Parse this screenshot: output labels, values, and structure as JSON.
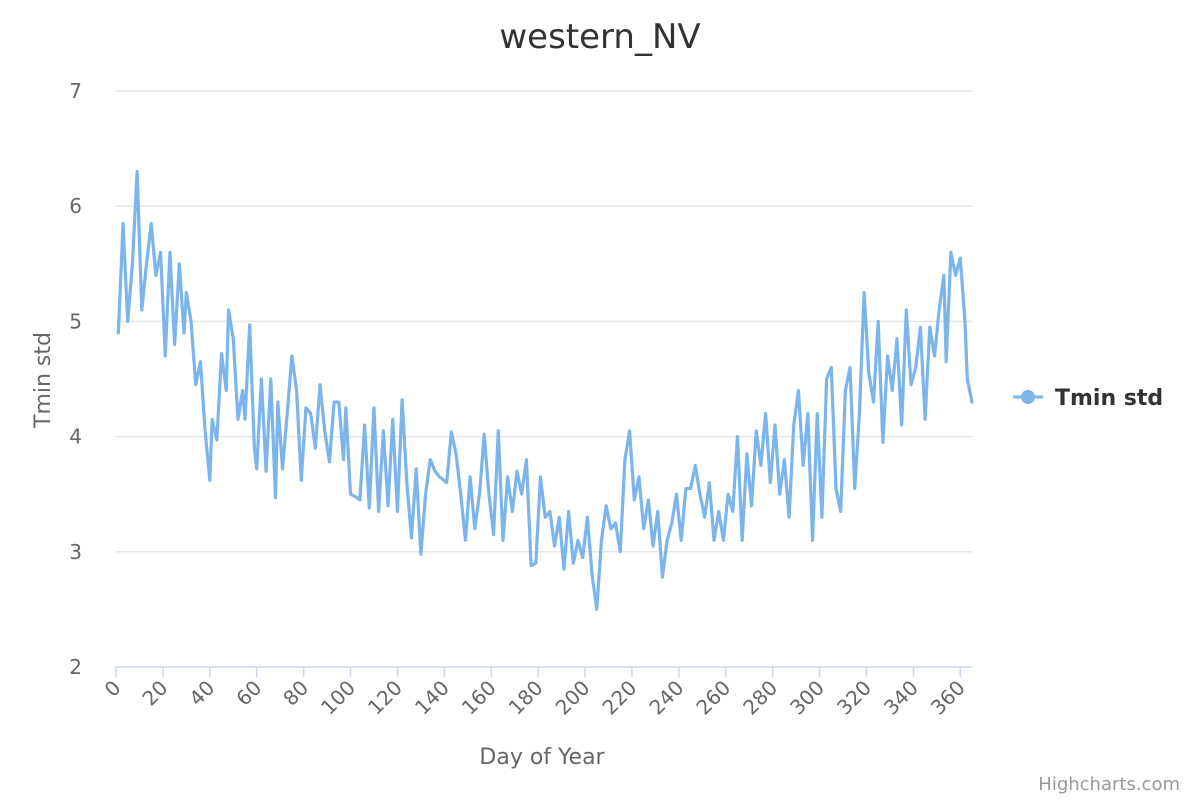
{
  "chart_data": {
    "type": "line",
    "title": "western_NV",
    "xlabel": "Day of Year",
    "ylabel": "Tmin std",
    "xlim": [
      0,
      365
    ],
    "ylim": [
      2,
      7
    ],
    "xticks": [
      "0",
      "20",
      "40",
      "60",
      "80",
      "100",
      "120",
      "140",
      "160",
      "180",
      "200",
      "220",
      "240",
      "260",
      "280",
      "300",
      "320",
      "340",
      "360"
    ],
    "yticks": [
      "2",
      "3",
      "4",
      "5",
      "6",
      "7"
    ],
    "grid": true,
    "legend_position": "right",
    "series": [
      {
        "name": "Tmin std",
        "color": "#7cb5ec",
        "points": [
          [
            1,
            4.9
          ],
          [
            3,
            5.85
          ],
          [
            5,
            5.0
          ],
          [
            7,
            5.5
          ],
          [
            9,
            6.3
          ],
          [
            11,
            5.1
          ],
          [
            13,
            5.5
          ],
          [
            15,
            5.85
          ],
          [
            17,
            5.4
          ],
          [
            19,
            5.6
          ],
          [
            21,
            4.7
          ],
          [
            23,
            5.6
          ],
          [
            25,
            4.8
          ],
          [
            27,
            5.5
          ],
          [
            29,
            4.9
          ],
          [
            30,
            5.25
          ],
          [
            32,
            5.0
          ],
          [
            34,
            4.45
          ],
          [
            36,
            4.65
          ],
          [
            38,
            4.05
          ],
          [
            40,
            3.62
          ],
          [
            41,
            4.15
          ],
          [
            43,
            3.97
          ],
          [
            45,
            4.72
          ],
          [
            47,
            4.4
          ],
          [
            48,
            5.1
          ],
          [
            50,
            4.85
          ],
          [
            52,
            4.15
          ],
          [
            54,
            4.4
          ],
          [
            55,
            4.15
          ],
          [
            57,
            4.97
          ],
          [
            59,
            3.9
          ],
          [
            60,
            3.72
          ],
          [
            62,
            4.5
          ],
          [
            64,
            3.7
          ],
          [
            66,
            4.5
          ],
          [
            68,
            3.47
          ],
          [
            69,
            4.3
          ],
          [
            71,
            3.72
          ],
          [
            73,
            4.2
          ],
          [
            75,
            4.7
          ],
          [
            77,
            4.4
          ],
          [
            79,
            3.62
          ],
          [
            81,
            4.25
          ],
          [
            83,
            4.2
          ],
          [
            85,
            3.9
          ],
          [
            87,
            4.45
          ],
          [
            89,
            4.05
          ],
          [
            91,
            3.78
          ],
          [
            93,
            4.3
          ],
          [
            95,
            4.3
          ],
          [
            97,
            3.8
          ],
          [
            98,
            4.25
          ],
          [
            100,
            3.5
          ],
          [
            102,
            3.48
          ],
          [
            104,
            3.45
          ],
          [
            106,
            4.1
          ],
          [
            108,
            3.38
          ],
          [
            110,
            4.25
          ],
          [
            112,
            3.35
          ],
          [
            114,
            4.05
          ],
          [
            116,
            3.4
          ],
          [
            118,
            4.15
          ],
          [
            120,
            3.35
          ],
          [
            122,
            4.32
          ],
          [
            124,
            3.6
          ],
          [
            126,
            3.12
          ],
          [
            128,
            3.72
          ],
          [
            130,
            2.98
          ],
          [
            132,
            3.5
          ],
          [
            134,
            3.8
          ],
          [
            136,
            3.7
          ],
          [
            138,
            3.65
          ],
          [
            141,
            3.6
          ],
          [
            143,
            4.04
          ],
          [
            145,
            3.85
          ],
          [
            147,
            3.5
          ],
          [
            149,
            3.1
          ],
          [
            151,
            3.65
          ],
          [
            153,
            3.2
          ],
          [
            155,
            3.5
          ],
          [
            157,
            4.02
          ],
          [
            159,
            3.5
          ],
          [
            161,
            3.15
          ],
          [
            163,
            4.05
          ],
          [
            165,
            3.1
          ],
          [
            167,
            3.65
          ],
          [
            169,
            3.35
          ],
          [
            171,
            3.7
          ],
          [
            173,
            3.5
          ],
          [
            175,
            3.8
          ],
          [
            177,
            2.88
          ],
          [
            179,
            2.9
          ],
          [
            181,
            3.65
          ],
          [
            183,
            3.3
          ],
          [
            185,
            3.35
          ],
          [
            187,
            3.05
          ],
          [
            189,
            3.3
          ],
          [
            191,
            2.85
          ],
          [
            193,
            3.35
          ],
          [
            195,
            2.9
          ],
          [
            197,
            3.1
          ],
          [
            199,
            2.95
          ],
          [
            201,
            3.3
          ],
          [
            203,
            2.8
          ],
          [
            205,
            2.5
          ],
          [
            207,
            3.1
          ],
          [
            209,
            3.4
          ],
          [
            211,
            3.2
          ],
          [
            213,
            3.25
          ],
          [
            215,
            3.0
          ],
          [
            217,
            3.8
          ],
          [
            219,
            4.05
          ],
          [
            221,
            3.45
          ],
          [
            223,
            3.65
          ],
          [
            225,
            3.2
          ],
          [
            227,
            3.45
          ],
          [
            229,
            3.05
          ],
          [
            231,
            3.35
          ],
          [
            233,
            2.78
          ],
          [
            235,
            3.1
          ],
          [
            237,
            3.25
          ],
          [
            239,
            3.5
          ],
          [
            241,
            3.1
          ],
          [
            243,
            3.55
          ],
          [
            245,
            3.55
          ],
          [
            247,
            3.75
          ],
          [
            249,
            3.5
          ],
          [
            251,
            3.3
          ],
          [
            253,
            3.6
          ],
          [
            255,
            3.1
          ],
          [
            257,
            3.35
          ],
          [
            259,
            3.1
          ],
          [
            261,
            3.5
          ],
          [
            263,
            3.35
          ],
          [
            265,
            4.0
          ],
          [
            267,
            3.1
          ],
          [
            269,
            3.85
          ],
          [
            271,
            3.4
          ],
          [
            273,
            4.05
          ],
          [
            275,
            3.75
          ],
          [
            277,
            4.2
          ],
          [
            279,
            3.6
          ],
          [
            281,
            4.1
          ],
          [
            283,
            3.5
          ],
          [
            285,
            3.8
          ],
          [
            287,
            3.3
          ],
          [
            289,
            4.1
          ],
          [
            291,
            4.4
          ],
          [
            293,
            3.75
          ],
          [
            295,
            4.2
          ],
          [
            297,
            3.1
          ],
          [
            299,
            4.2
          ],
          [
            301,
            3.3
          ],
          [
            303,
            4.5
          ],
          [
            305,
            4.6
          ],
          [
            307,
            3.55
          ],
          [
            309,
            3.35
          ],
          [
            311,
            4.4
          ],
          [
            313,
            4.6
          ],
          [
            315,
            3.55
          ],
          [
            317,
            4.2
          ],
          [
            319,
            5.25
          ],
          [
            321,
            4.55
          ],
          [
            323,
            4.3
          ],
          [
            325,
            5.0
          ],
          [
            327,
            3.95
          ],
          [
            329,
            4.7
          ],
          [
            331,
            4.4
          ],
          [
            333,
            4.85
          ],
          [
            335,
            4.1
          ],
          [
            337,
            5.1
          ],
          [
            339,
            4.45
          ],
          [
            341,
            4.6
          ],
          [
            343,
            4.95
          ],
          [
            345,
            4.15
          ],
          [
            347,
            4.95
          ],
          [
            349,
            4.7
          ],
          [
            351,
            5.1
          ],
          [
            353,
            5.4
          ],
          [
            354,
            4.65
          ],
          [
            356,
            5.6
          ],
          [
            358,
            5.4
          ],
          [
            360,
            5.55
          ],
          [
            362,
            5.0
          ],
          [
            363,
            4.5
          ],
          [
            365,
            4.3
          ]
        ]
      }
    ]
  },
  "credits": "Highcharts.com"
}
